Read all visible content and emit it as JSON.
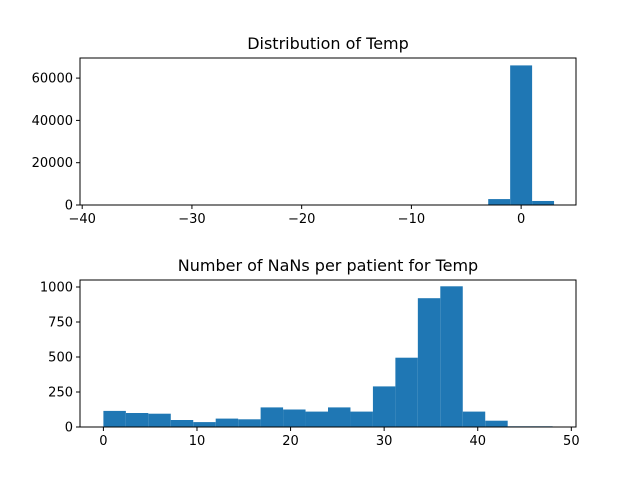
{
  "chart_data": [
    {
      "type": "bar",
      "title": "Distribution of Temp",
      "xlabel": "",
      "ylabel": "",
      "xlim": [
        -40.2,
        5
      ],
      "ylim": [
        0,
        69500
      ],
      "xticks": [
        -40,
        -30,
        -20,
        -10,
        0
      ],
      "xtick_labels": [
        "−40",
        "−30",
        "−20",
        "−10",
        "0"
      ],
      "yticks": [
        0,
        20000,
        40000,
        60000
      ],
      "ytick_labels": [
        "0",
        "20000",
        "40000",
        "60000"
      ],
      "bins": [
        {
          "x0": -3.0,
          "x1": -1.0,
          "value": 2800
        },
        {
          "x0": -1.0,
          "x1": 1.0,
          "value": 66000
        },
        {
          "x0": 1.0,
          "x1": 3.0,
          "value": 1900
        }
      ],
      "bar_color": "#1f77b4",
      "grid": false
    },
    {
      "type": "bar",
      "title": "Number of NaNs per patient for Temp",
      "xlabel": "",
      "ylabel": "",
      "xlim": [
        -2.5,
        50.5
      ],
      "ylim": [
        0,
        1050
      ],
      "xticks": [
        0,
        10,
        20,
        30,
        40,
        50
      ],
      "xtick_labels": [
        "0",
        "10",
        "20",
        "30",
        "40",
        "50"
      ],
      "yticks": [
        0,
        250,
        500,
        750,
        1000
      ],
      "ytick_labels": [
        "0",
        "250",
        "500",
        "750",
        "1000"
      ],
      "bins": [
        {
          "x0": 0.0,
          "x1": 2.4,
          "value": 115
        },
        {
          "x0": 2.4,
          "x1": 4.8,
          "value": 100
        },
        {
          "x0": 4.8,
          "x1": 7.2,
          "value": 95
        },
        {
          "x0": 7.2,
          "x1": 9.6,
          "value": 50
        },
        {
          "x0": 9.6,
          "x1": 12.0,
          "value": 35
        },
        {
          "x0": 12.0,
          "x1": 14.4,
          "value": 60
        },
        {
          "x0": 14.4,
          "x1": 16.8,
          "value": 55
        },
        {
          "x0": 16.8,
          "x1": 19.2,
          "value": 140
        },
        {
          "x0": 19.2,
          "x1": 21.6,
          "value": 125
        },
        {
          "x0": 21.6,
          "x1": 24.0,
          "value": 110
        },
        {
          "x0": 24.0,
          "x1": 26.4,
          "value": 140
        },
        {
          "x0": 26.4,
          "x1": 28.8,
          "value": 110
        },
        {
          "x0": 28.8,
          "x1": 31.2,
          "value": 290
        },
        {
          "x0": 31.2,
          "x1": 33.6,
          "value": 495
        },
        {
          "x0": 33.6,
          "x1": 36.0,
          "value": 920
        },
        {
          "x0": 36.0,
          "x1": 38.4,
          "value": 1005
        },
        {
          "x0": 38.4,
          "x1": 40.8,
          "value": 110
        },
        {
          "x0": 40.8,
          "x1": 43.2,
          "value": 45
        },
        {
          "x0": 43.2,
          "x1": 45.6,
          "value": 5
        },
        {
          "x0": 45.6,
          "x1": 48.0,
          "value": 5
        }
      ],
      "bar_color": "#1f77b4",
      "grid": false
    }
  ]
}
